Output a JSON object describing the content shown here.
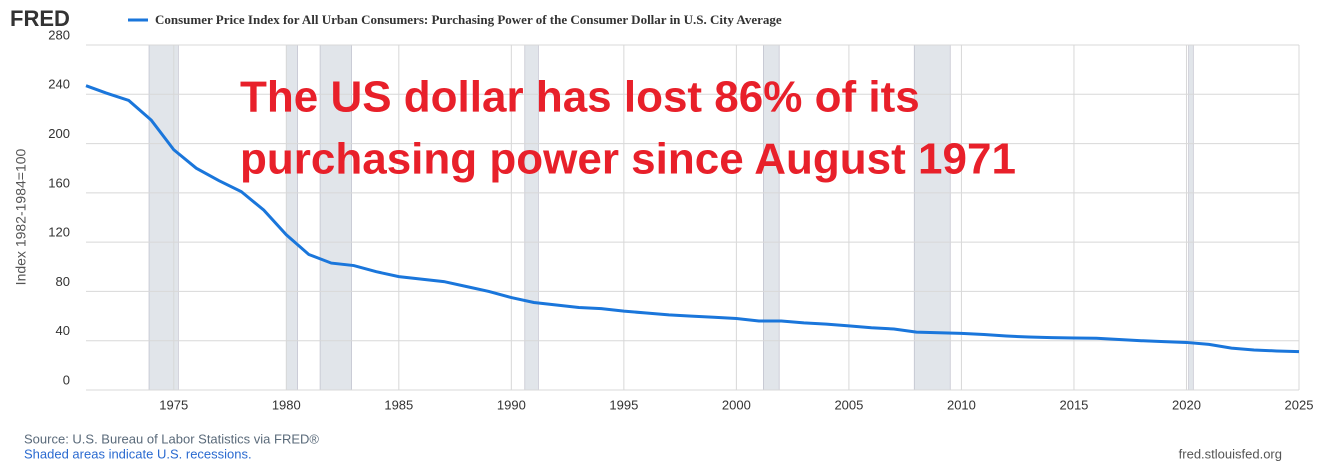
{
  "logo": "FRED",
  "chart_data": {
    "type": "line",
    "title": "Consumer Price Index for All Urban Consumers: Purchasing Power of the Consumer Dollar in U.S. City Average",
    "y_label": "Index 1982-1984=100",
    "annotation": [
      "The US dollar has lost 86% of its",
      "purchasing power since August 1971"
    ],
    "x": [
      1971.1,
      1972,
      1973,
      1974,
      1975,
      1976,
      1977,
      1978,
      1979,
      1980,
      1981,
      1982,
      1983,
      1984,
      1985,
      1986,
      1987,
      1988,
      1989,
      1990,
      1991,
      1992,
      1993,
      1994,
      1995,
      1996,
      1997,
      1998,
      1999,
      2000,
      2001,
      2002,
      2003,
      2004,
      2005,
      2006,
      2007,
      2008,
      2009,
      2010,
      2011,
      2012,
      2013,
      2014,
      2015,
      2016,
      2017,
      2018,
      2019,
      2020,
      2021,
      2022,
      2023,
      2024,
      2025
    ],
    "series": [
      {
        "name": "Consumer Price Index for All Urban Consumers: Purchasing Power of the Consumer Dollar in U.S. City Average",
        "color": "#1a76db",
        "values": [
          247,
          241,
          235,
          219,
          195,
          180,
          170,
          161,
          146,
          126,
          110,
          103,
          101,
          96,
          92,
          90,
          88,
          84,
          80,
          75,
          71,
          69,
          67,
          66,
          64,
          62.5,
          61,
          60,
          59,
          58,
          56,
          56,
          54.5,
          53.5,
          52,
          50.5,
          49.5,
          47,
          46.5,
          46,
          45,
          43.8,
          43,
          42.5,
          42.2,
          42,
          41,
          40,
          39.3,
          38.6,
          37,
          34,
          32.5,
          31.7,
          31.1
        ]
      }
    ],
    "recessions": [
      [
        1973.9,
        1975.2
      ],
      [
        1980.0,
        1980.5
      ],
      [
        1981.5,
        1982.9
      ],
      [
        1990.6,
        1991.2
      ],
      [
        2001.2,
        2001.9
      ],
      [
        2007.9,
        2009.5
      ],
      [
        2020.1,
        2020.3
      ]
    ],
    "xlim": [
      1971.1,
      2025
    ],
    "xticks": [
      1975,
      1980,
      1985,
      1990,
      1995,
      2000,
      2005,
      2010,
      2015,
      2020,
      2025
    ],
    "ylim": [
      0,
      280
    ],
    "yticks": [
      0,
      40,
      80,
      120,
      160,
      200,
      240,
      280
    ],
    "grid": true,
    "source": "Source: U.S. Bureau of Labor Statistics via FRED®",
    "note": "Shaded areas indicate U.S. recessions.",
    "url": "fred.stlouisfed.org"
  }
}
